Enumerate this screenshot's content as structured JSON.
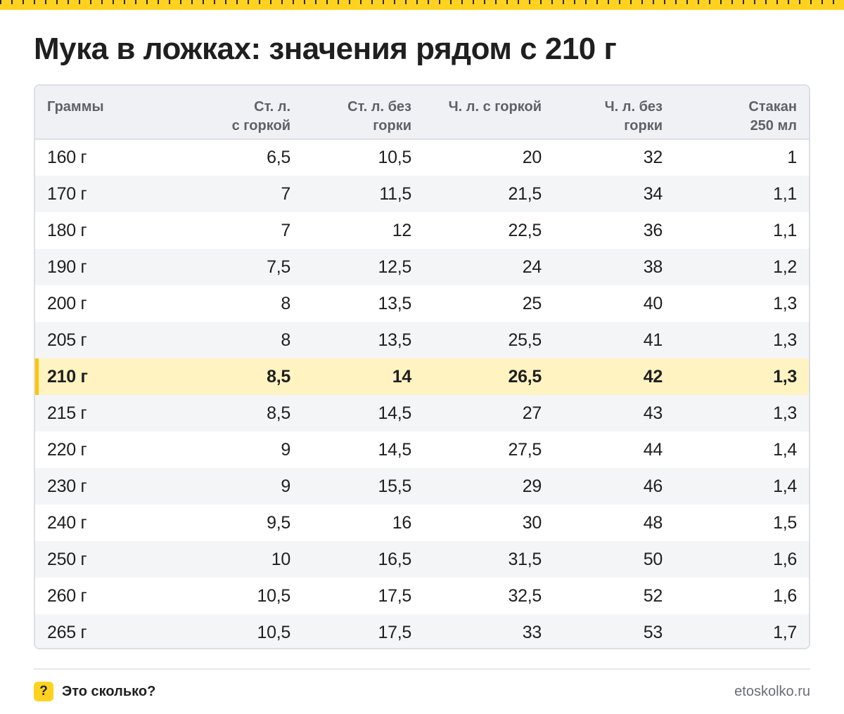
{
  "title": "Мука в ложках: значения рядом с 210 г",
  "accent_color": "#ffd21f",
  "highlight_color": "#fff3c2",
  "table": {
    "headers": [
      "Граммы",
      "Ст. л.\nс горкой",
      "Ст. л. без\nгорки",
      "Ч. л. с горкой",
      "Ч. л. без\nгорки",
      "Стакан\n250 мл"
    ],
    "highlighted_row": 6,
    "rows": [
      [
        "160 г",
        "6,5",
        "10,5",
        "20",
        "32",
        "1"
      ],
      [
        "170 г",
        "7",
        "11,5",
        "21,5",
        "34",
        "1,1"
      ],
      [
        "180 г",
        "7",
        "12",
        "22,5",
        "36",
        "1,1"
      ],
      [
        "190 г",
        "7,5",
        "12,5",
        "24",
        "38",
        "1,2"
      ],
      [
        "200 г",
        "8",
        "13,5",
        "25",
        "40",
        "1,3"
      ],
      [
        "205 г",
        "8",
        "13,5",
        "25,5",
        "41",
        "1,3"
      ],
      [
        "210 г",
        "8,5",
        "14",
        "26,5",
        "42",
        "1,3"
      ],
      [
        "215 г",
        "8,5",
        "14,5",
        "27",
        "43",
        "1,3"
      ],
      [
        "220 г",
        "9",
        "14,5",
        "27,5",
        "44",
        "1,4"
      ],
      [
        "230 г",
        "9",
        "15,5",
        "29",
        "46",
        "1,4"
      ],
      [
        "240 г",
        "9,5",
        "16",
        "30",
        "48",
        "1,5"
      ],
      [
        "250 г",
        "10",
        "16,5",
        "31,5",
        "50",
        "1,6"
      ],
      [
        "260 г",
        "10,5",
        "17,5",
        "32,5",
        "52",
        "1,6"
      ],
      [
        "265 г",
        "10,5",
        "17,5",
        "33",
        "53",
        "1,7"
      ]
    ]
  },
  "footer": {
    "brand_icon": "?",
    "brand_icon_name": "question-mark-icon",
    "brand_name": "Это сколько?",
    "site": "etoskolko.ru"
  }
}
